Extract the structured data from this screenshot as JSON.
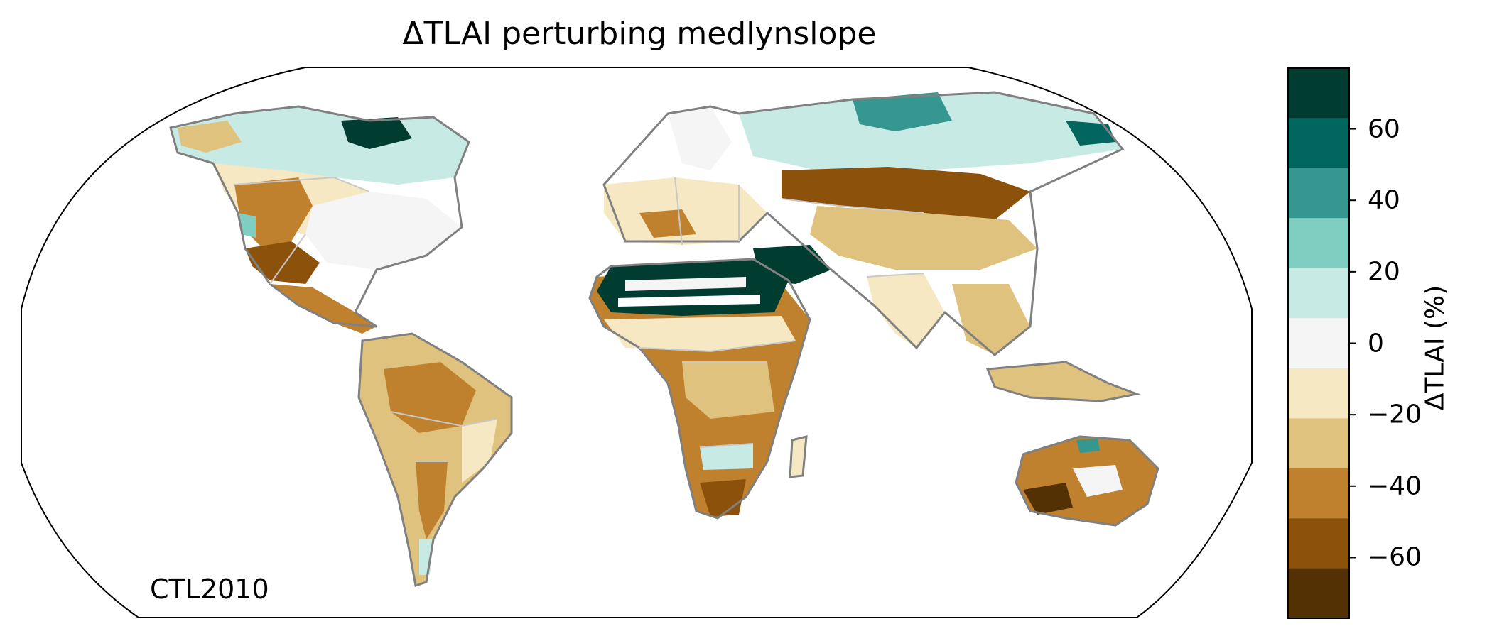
{
  "title": "ΔTLAI perturbing medlynslope",
  "corner_label": "CTL2010",
  "colorbar": {
    "label": "ΔTLAI (%)",
    "ticks": [
      {
        "value": 60,
        "label": "60"
      },
      {
        "value": 40,
        "label": "40"
      },
      {
        "value": 20,
        "label": "20"
      },
      {
        "value": 0,
        "label": "0"
      },
      {
        "value": -20,
        "label": "−20"
      },
      {
        "value": -40,
        "label": "−40"
      },
      {
        "value": -60,
        "label": "−60"
      }
    ],
    "range": [
      -77,
      77
    ],
    "bins": [
      {
        "min": -77,
        "max": -63,
        "color": "#543005"
      },
      {
        "min": -63,
        "max": -49,
        "color": "#8c510a"
      },
      {
        "min": -49,
        "max": -35,
        "color": "#bf812d"
      },
      {
        "min": -35,
        "max": -21,
        "color": "#dfc27d"
      },
      {
        "min": -21,
        "max": -7,
        "color": "#f6e8c3"
      },
      {
        "min": -7,
        "max": 7,
        "color": "#f5f5f5"
      },
      {
        "min": 7,
        "max": 21,
        "color": "#c7eae5"
      },
      {
        "min": 21,
        "max": 35,
        "color": "#80cdc1"
      },
      {
        "min": 35,
        "max": 49,
        "color": "#35978f"
      },
      {
        "min": 49,
        "max": 63,
        "color": "#01665e"
      },
      {
        "min": 63,
        "max": 77,
        "color": "#003c30"
      }
    ]
  },
  "map": {
    "projection": "robinson",
    "coastline_color": "#808080",
    "border_color": "#c8c8c8"
  }
}
